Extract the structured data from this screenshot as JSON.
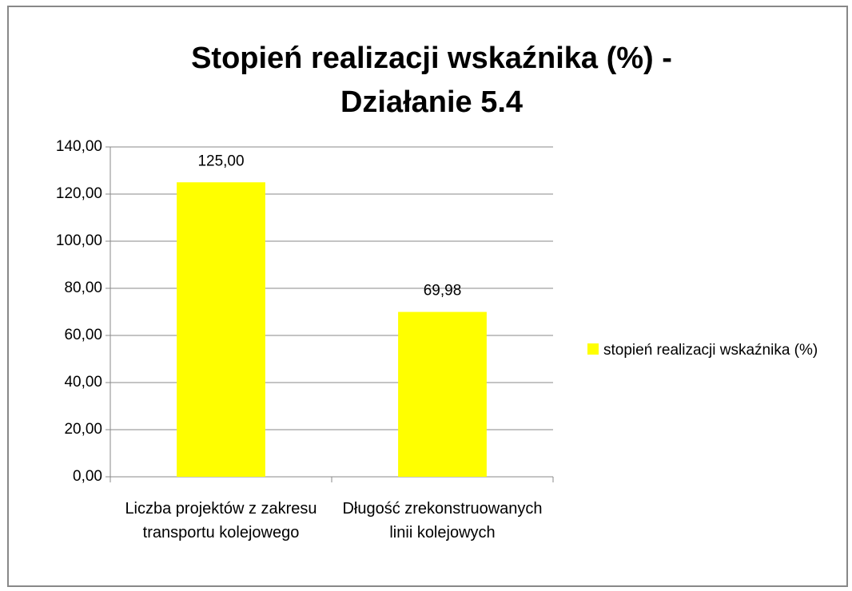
{
  "chart_data": {
    "type": "bar",
    "title": [
      "Stopień realizacji wskaźnika (%) -",
      "Działanie 5.4"
    ],
    "categories": [
      "Liczba projektów z zakresu transportu kolejowego",
      "Długość zrekonstruowanych linii kolejowych"
    ],
    "series": [
      {
        "name": "stopień realizacji wskaźnika (%)",
        "color": "#ffff00",
        "values": [
          125,
          69.98
        ],
        "value_labels": [
          "125,00",
          "69,98"
        ]
      }
    ],
    "ylim": [
      0,
      140
    ],
    "yticks": [
      {
        "value": 0,
        "label": "0,00"
      },
      {
        "value": 20,
        "label": "20,00"
      },
      {
        "value": 40,
        "label": "40,00"
      },
      {
        "value": 60,
        "label": "60,00"
      },
      {
        "value": 80,
        "label": "80,00"
      },
      {
        "value": 100,
        "label": "100,00"
      },
      {
        "value": 120,
        "label": "120,00"
      },
      {
        "value": 140,
        "label": "140,00"
      }
    ],
    "grid": true,
    "legend": "right"
  }
}
